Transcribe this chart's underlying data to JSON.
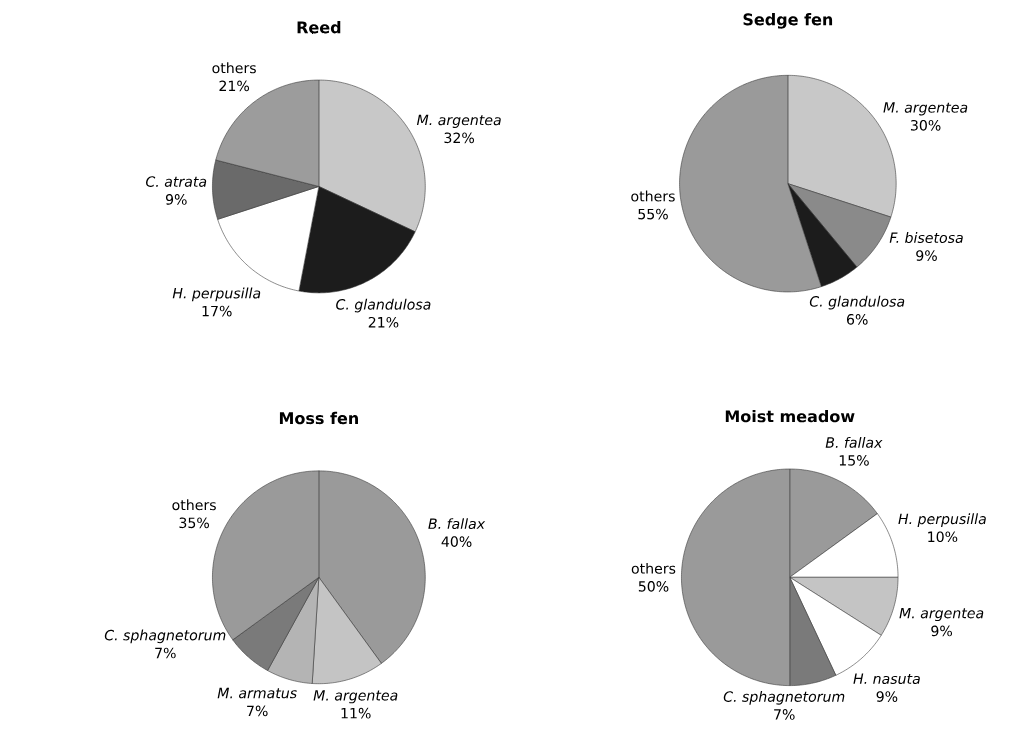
{
  "chart_data": [
    {
      "type": "pie",
      "title": "Reed",
      "categories": [
        "*M. argentea*",
        "*C. glandulosa*",
        "*H. perpusilla*",
        "*C. atrata*",
        "others"
      ],
      "values": [
        32,
        21,
        17,
        9,
        21
      ],
      "value_labels": [
        "32%",
        "21%",
        "17%",
        "9%",
        "21%"
      ],
      "colors": [
        "#c8c8c8",
        "#1c1c1c",
        "#ffffff",
        "#6a6a6a",
        "#9c9c9c"
      ]
    },
    {
      "type": "pie",
      "title": "Sedge fen",
      "categories": [
        "*M. argentea*",
        "*F. bisetosa*",
        "*C. glandulosa*",
        "others"
      ],
      "values": [
        30,
        9,
        6,
        55
      ],
      "value_labels": [
        "30%",
        "9%",
        "6%",
        "55%"
      ],
      "colors": [
        "#c8c8c8",
        "#8a8a8a",
        "#1c1c1c",
        "#9a9a9a"
      ]
    },
    {
      "type": "pie",
      "title": "Moss fen",
      "categories": [
        "*B. fallax*",
        "*M. argentea*",
        "*M. armatus*",
        "*C. sphagnetorum*",
        "others"
      ],
      "values": [
        40,
        11,
        7,
        7,
        35
      ],
      "value_labels": [
        "40%",
        "11%",
        "7%",
        "7%",
        "35%"
      ],
      "colors": [
        "#9a9a9a",
        "#c4c4c4",
        "#b4b4b4",
        "#7a7a7a",
        "#9a9a9a"
      ]
    },
    {
      "type": "pie",
      "title": "Moist meadow",
      "categories": [
        "*B. fallax*",
        "*H. perpusilla*",
        "*M. argentea*",
        "*H. nasuta*",
        "*C. sphagnetorum*",
        "others"
      ],
      "values": [
        15,
        10,
        9,
        9,
        7,
        50
      ],
      "value_labels": [
        "15%",
        "10%",
        "9%",
        "9%",
        "7%",
        "50%"
      ],
      "colors": [
        "#9a9a9a",
        "#ffffff",
        "#c4c4c4",
        "#ffffff",
        "#7a7a7a",
        "#9a9a9a"
      ]
    }
  ]
}
